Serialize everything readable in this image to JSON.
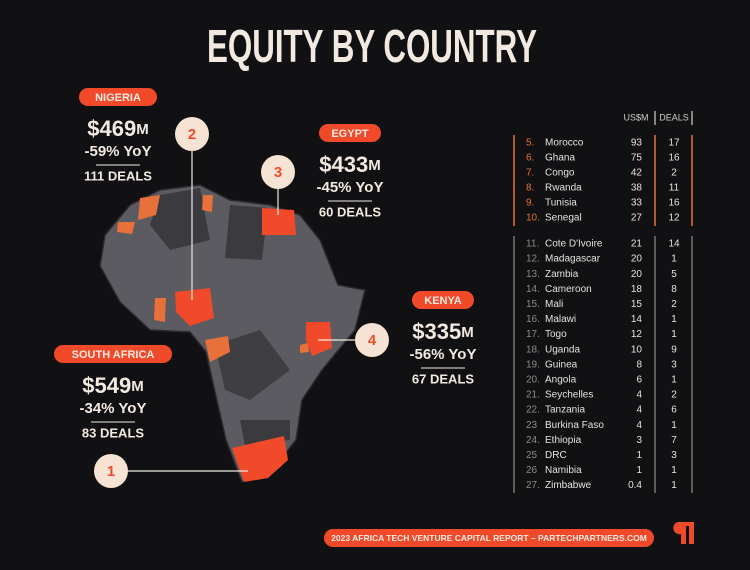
{
  "header": {
    "title": "EQUITY BY COUNTRY"
  },
  "callouts": [
    {
      "country": "NIGERIA",
      "amount": "$469",
      "unit": "M",
      "yoy": "-59% YoY",
      "deals": "111 DEALS",
      "marker": "2"
    },
    {
      "country": "EGYPT",
      "amount": "$433",
      "unit": "M",
      "yoy": "-45% YoY",
      "deals": "60 DEALS",
      "marker": "3"
    },
    {
      "country": "KENYA",
      "amount": "$335",
      "unit": "M",
      "yoy": "-56% YoY",
      "deals": "67 DEALS",
      "marker": "4"
    },
    {
      "country": "SOUTH AFRICA",
      "amount": "$549",
      "unit": "M",
      "yoy": "-34% YoY",
      "deals": "83 DEALS",
      "marker": "1"
    }
  ],
  "table": {
    "columns": [
      "US$M",
      "DEALS"
    ],
    "groups": [
      {
        "rows": [
          [
            "5.",
            "Morocco",
            93,
            17
          ],
          [
            "6.",
            "Ghana",
            75,
            16
          ],
          [
            "7.",
            "Congo",
            42,
            2
          ],
          [
            "8.",
            "Rwanda",
            38,
            11
          ],
          [
            "9.",
            "Tunisia",
            33,
            16
          ],
          [
            "10.",
            "Senegal",
            27,
            12
          ]
        ]
      },
      {
        "rows": [
          [
            "11.",
            "Cote D'Ivoire",
            21,
            14
          ],
          [
            "12.",
            "Madagascar",
            20,
            1
          ],
          [
            "13.",
            "Zambia",
            20,
            5
          ],
          [
            "14.",
            "Cameroon",
            18,
            8
          ],
          [
            "15.",
            "Mali",
            15,
            2
          ],
          [
            "16.",
            "Malawi",
            14,
            1
          ],
          [
            "17.",
            "Togo",
            12,
            1
          ],
          [
            "18.",
            "Uganda",
            10,
            9
          ],
          [
            "19.",
            "Guinea",
            8,
            3
          ],
          [
            "20.",
            "Angola",
            6,
            1
          ],
          [
            "21.",
            "Seychelles",
            4,
            2
          ],
          [
            "22.",
            "Tanzania",
            4,
            6
          ],
          [
            "23",
            "Burkina Faso",
            4,
            1
          ],
          [
            "24.",
            "Ethiopia",
            3,
            7
          ],
          [
            "25",
            "DRC",
            1,
            3
          ],
          [
            "26",
            "Namibia",
            1,
            1
          ],
          [
            "27.",
            "Zimbabwe",
            0.4,
            1
          ]
        ]
      }
    ]
  },
  "footer": {
    "text": "2023 AFRICA TECH VENTURE CAPITAL REPORT – PARTECHPARTNERS.COM"
  }
}
